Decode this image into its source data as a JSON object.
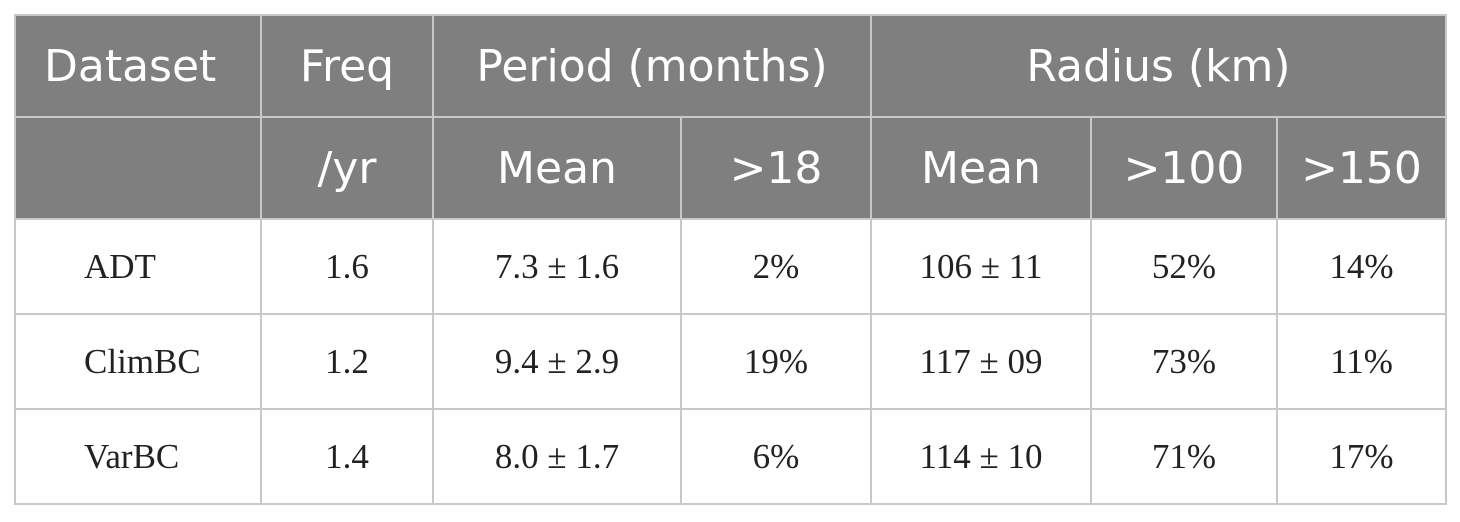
{
  "header": {
    "row1": {
      "dataset": "Dataset",
      "freq": "Freq",
      "period": "Period (months)",
      "radius": "Radius (km)"
    },
    "row2": {
      "dataset": "",
      "freq_unit": "/yr",
      "period_mean": "Mean",
      "period_gt18": ">18",
      "radius_mean": "Mean",
      "radius_gt100": ">100",
      "radius_gt150": ">150"
    }
  },
  "rows": [
    {
      "dataset": "ADT",
      "freq": "1.6",
      "period_mean": "7.3 ± 1.6",
      "period_gt18": "2%",
      "radius_mean": "106 ± 11",
      "radius_gt100": "52%",
      "radius_gt150": "14%"
    },
    {
      "dataset": "ClimBC",
      "freq": "1.2",
      "period_mean": "9.4 ± 2.9",
      "period_gt18": "19%",
      "radius_mean": "117 ± 09",
      "radius_gt100": "73%",
      "radius_gt150": "11%"
    },
    {
      "dataset": "VarBC",
      "freq": "1.4",
      "period_mean": "8.0 ± 1.7",
      "period_gt18": "6%",
      "radius_mean": "114 ± 10",
      "radius_gt100": "71%",
      "radius_gt150": "17%"
    }
  ],
  "colors": {
    "header_bg": "#7f7f7f",
    "header_text": "#ffffff",
    "grid": "#c8c8c8",
    "body_text": "#222222"
  }
}
